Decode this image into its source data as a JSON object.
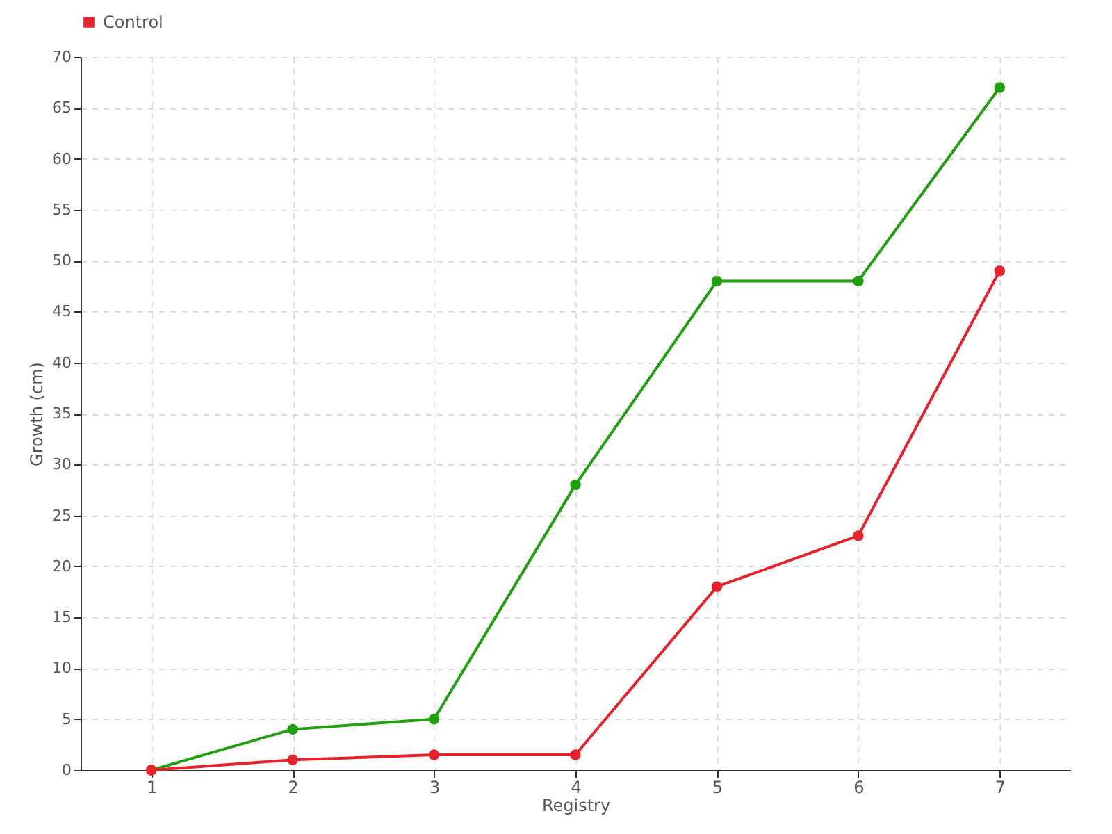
{
  "chart_data": {
    "type": "line",
    "xlabel": "Registry",
    "ylabel": "Growth (cm)",
    "categories": [
      "1",
      "2",
      "3",
      "4",
      "5",
      "6",
      "7"
    ],
    "series": [
      {
        "color": "#1fa00f",
        "values": [
          0,
          4,
          5,
          28,
          48,
          48,
          67
        ]
      },
      {
        "name": "Control",
        "color": "#e8212b",
        "values": [
          0,
          1,
          1.5,
          1.5,
          18,
          23,
          49
        ]
      }
    ],
    "ylim": [
      0,
      70
    ],
    "yticks": [
      0,
      5,
      10,
      15,
      20,
      25,
      30,
      35,
      40,
      45,
      50,
      55,
      60,
      65,
      70
    ],
    "grid": true,
    "legend": "top left",
    "marker": "circle",
    "line_style": "solid"
  }
}
